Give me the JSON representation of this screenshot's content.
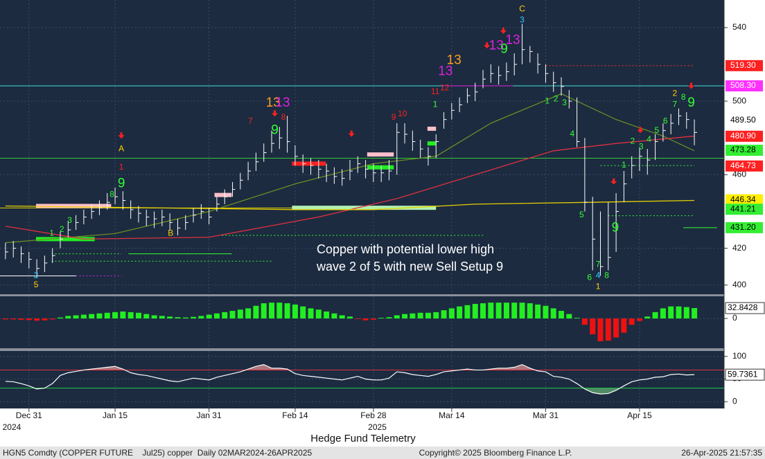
{
  "chart_data": [
    {
      "type": "ohlc",
      "annotation": [
        "Copper with potential lower high",
        "wave 2 of 5 with new Sell Setup 9"
      ],
      "color": "#ffffff",
      "high": [
        423,
        424,
        421,
        418,
        414,
        416,
        420,
        429,
        435,
        438,
        441,
        444,
        446,
        450,
        453,
        451,
        446,
        443,
        441,
        440,
        441,
        439,
        436,
        438,
        442,
        444,
        442,
        448,
        452,
        456,
        461,
        467,
        472,
        477,
        484,
        486,
        492,
        476,
        471,
        469,
        468,
        466,
        464,
        463,
        468,
        470,
        468,
        466,
        465,
        468,
        488,
        488,
        484,
        479,
        475,
        482,
        494,
        499,
        502,
        507,
        510,
        517,
        520,
        519,
        521,
        526,
        542,
        530,
        526,
        520,
        516,
        513,
        506,
        502,
        480,
        448,
        440,
        445,
        450,
        462,
        470,
        475,
        474,
        482,
        488,
        493,
        496,
        494,
        490
      ],
      "low": [
        414,
        415,
        412,
        409,
        404,
        407,
        412,
        420,
        426,
        430,
        433,
        436,
        438,
        441,
        444,
        441,
        436,
        434,
        432,
        431,
        432,
        430,
        427,
        430,
        434,
        436,
        433,
        440,
        444,
        448,
        452,
        457,
        462,
        467,
        472,
        474,
        472,
        465,
        461,
        460,
        458,
        456,
        455,
        454,
        457,
        461,
        458,
        456,
        456,
        457,
        460,
        477,
        473,
        469,
        465,
        469,
        485,
        490,
        494,
        499,
        500,
        507,
        510,
        509,
        511,
        514,
        520,
        521,
        515,
        510,
        505,
        503,
        496,
        475,
        440,
        408,
        405,
        408,
        418,
        445,
        458,
        462,
        460,
        468,
        478,
        482,
        487,
        485,
        476
      ],
      "close": [
        418,
        420,
        417,
        414,
        409,
        412,
        416,
        425,
        430,
        434,
        437,
        440,
        442,
        445,
        448,
        446,
        441,
        439,
        437,
        436,
        437,
        434,
        431,
        434,
        438,
        440,
        437,
        444,
        448,
        452,
        457,
        462,
        467,
        472,
        477,
        480,
        478,
        470,
        466,
        465,
        463,
        462,
        459,
        458,
        462,
        466,
        463,
        461,
        461,
        462,
        483,
        482,
        478,
        474,
        470,
        478,
        490,
        495,
        498,
        503,
        505,
        512,
        515,
        514,
        516,
        520,
        528,
        527,
        520,
        515,
        510,
        508,
        500,
        478,
        445,
        425,
        410,
        415,
        440,
        455,
        465,
        470,
        468,
        478,
        484,
        488,
        492,
        490,
        483
      ],
      "xlim": [
        -0.7,
        91.8
      ],
      "ylim": [
        395,
        555
      ],
      "yticks": [
        400,
        420,
        460,
        500,
        540
      ],
      "xticks": [
        {
          "value": 3,
          "label": "Dec 31"
        },
        {
          "value": 14,
          "label": "Jan 15"
        },
        {
          "value": 26,
          "label": "Jan 31"
        },
        {
          "value": 37,
          "label": "Feb 14"
        },
        {
          "value": 47,
          "label": "Feb 28"
        },
        {
          "value": 57,
          "label": "Mar 14"
        },
        {
          "value": 69,
          "label": "Mar 31"
        },
        {
          "value": 81,
          "label": "Apr 15"
        }
      ],
      "year_labels": [
        {
          "value": 0.8,
          "label": "2024"
        },
        {
          "value": 47.5,
          "label": "2025"
        }
      ],
      "grid": true,
      "series": [
        {
          "color": "#6b8e23",
          "x": [
            0,
            14,
            26,
            37,
            47,
            55,
            62,
            71,
            78,
            84,
            88
          ],
          "values": [
            423,
            428,
            440,
            455,
            466,
            470,
            488,
            504,
            490,
            481,
            473
          ]
        },
        {
          "color": "#e03040",
          "x": [
            0,
            10,
            26,
            40,
            50,
            60,
            70,
            78,
            88
          ],
          "values": [
            432,
            425,
            426,
            437,
            447,
            460,
            473,
            477,
            481
          ]
        },
        {
          "color": "#e8d000",
          "x": [
            0,
            37,
            47,
            60,
            75,
            88
          ],
          "values": [
            443,
            441,
            441,
            444,
            445,
            446
          ]
        }
      ],
      "levels": [
        {
          "value": 508.3,
          "color": "#40e0e0",
          "x": [
            -0.7,
            91.8
          ],
          "style": "solid"
        },
        {
          "value": 469,
          "color": "#33cc33",
          "x": [
            -0.7,
            91.8
          ],
          "style": "solid"
        },
        {
          "value": 441.9,
          "color": "#e0d000",
          "x": [
            -0.7,
            55
          ],
          "style": "solid"
        },
        {
          "value": 519.3,
          "color": "#ff3030",
          "x": [
            69,
            88
          ],
          "style": "dotted"
        },
        {
          "value": 465,
          "color": "#33ff33",
          "x": [
            76,
            88
          ],
          "style": "dotted"
        },
        {
          "value": 437.7,
          "color": "#33ff33",
          "x": [
            77,
            88
          ],
          "style": "dotted"
        },
        {
          "value": 427,
          "color": "#33ff33",
          "x": [
            27.2,
            61.2
          ],
          "style": "dotted"
        },
        {
          "value": 417,
          "color": "#33ff33",
          "x": [
            5.9,
            14.8
          ],
          "style": "dotted"
        },
        {
          "value": 413,
          "color": "#33ff33",
          "x": [
            5.9,
            34.2
          ],
          "style": "dotted"
        },
        {
          "value": 417,
          "color": "#33ff33",
          "x": [
            15.7,
            28.9
          ],
          "style": "solid"
        },
        {
          "value": 405,
          "color": "#e020e0",
          "x": [
            9,
            14.8
          ],
          "style": "dotted"
        },
        {
          "value": 405,
          "color": "#ffffff",
          "x": [
            -0.7,
            9
          ],
          "style": "solid"
        },
        {
          "value": 431.2,
          "color": "#33ff33",
          "x": [
            86.6,
            90.9
          ],
          "style": "solid"
        },
        {
          "value": 508.3,
          "color": "#e020e0",
          "x": [
            55.9,
            64.8
          ],
          "style": "solid"
        },
        {
          "value": 443,
          "color": "#ffc0cb",
          "x": [
            3.9,
            13.5
          ],
          "style": "thick"
        },
        {
          "value": 425,
          "color": "#22ee22",
          "x": [
            3.9,
            11.4
          ],
          "style": "thick"
        },
        {
          "value": 449,
          "color": "#ffc0cb",
          "x": [
            26.7,
            28.9
          ],
          "style": "thick"
        },
        {
          "value": 466,
          "color": "#ff2020",
          "x": [
            36.6,
            40.9
          ],
          "style": "thick"
        },
        {
          "value": 471,
          "color": "#ffc0cb",
          "x": [
            46.2,
            49.6
          ],
          "style": "thick"
        },
        {
          "value": 464,
          "color": "#22ee22",
          "x": [
            46.2,
            49.6
          ],
          "style": "thick"
        },
        {
          "value": 442,
          "color": "#b0f0b0",
          "x": [
            36.6,
            55
          ],
          "style": "thick"
        },
        {
          "value": 485,
          "color": "#ffc0cb",
          "x": [
            53.9,
            55
          ],
          "style": "thick"
        },
        {
          "value": 477,
          "color": "#22ee22",
          "x": [
            53.9,
            55
          ],
          "style": "thick"
        }
      ],
      "price_labels": [
        {
          "value": 519.3,
          "label": "519.30",
          "color": "#ff2020"
        },
        {
          "value": 508.3,
          "label": "508.30",
          "color": "#ff30ff"
        },
        {
          "value": 489.5,
          "label": "489.50",
          "color": "#ffffff"
        },
        {
          "value": 480.9,
          "label": "480.90",
          "color": "#ff2020"
        },
        {
          "value": 473.28,
          "label": "473.28",
          "color": "#33ee33"
        },
        {
          "value": 464.73,
          "label": "464.73",
          "color": "#ff2020"
        },
        {
          "value": 446.34,
          "label": "446.34",
          "color": "#ffee00"
        },
        {
          "value": 441.21,
          "label": "441.21",
          "color": "#33ee33"
        },
        {
          "value": 431.2,
          "label": "431.20",
          "color": "#33ee33"
        }
      ],
      "markers": [
        {
          "text": "A",
          "x": 14.8,
          "y": 474,
          "color": "#ffd000"
        },
        {
          "text": "1",
          "x": 14.8,
          "y": 464,
          "color": "#ff2020"
        },
        {
          "text": "9",
          "x": 14.8,
          "y": 455,
          "color": "#33ff33"
        },
        {
          "text": "8",
          "x": 13.6,
          "y": 449,
          "color": "#33ff33"
        },
        {
          "text": "B",
          "x": 21.1,
          "y": 428,
          "color": "#ffd000"
        },
        {
          "text": "1",
          "x": 5.9,
          "y": 428,
          "color": "#33ff33"
        },
        {
          "text": "2",
          "x": 7.2,
          "y": 430,
          "color": "#33ff33"
        },
        {
          "text": "3",
          "x": 8.2,
          "y": 435,
          "color": "#33ff33"
        },
        {
          "text": "2",
          "x": 3.9,
          "y": 405,
          "color": "#33ccff"
        },
        {
          "text": "5",
          "x": 3.9,
          "y": 400,
          "color": "#ffd000"
        },
        {
          "text": "7",
          "x": 31.3,
          "y": 489,
          "color": "#ff2020"
        },
        {
          "text": "13",
          "x": 34.2,
          "y": 499,
          "color": "#ff9f1c"
        },
        {
          "text": "13",
          "x": 35.4,
          "y": 499,
          "color": "#e020e0"
        },
        {
          "text": "9",
          "x": 34.4,
          "y": 484,
          "color": "#33ff33"
        },
        {
          "text": "8",
          "x": 35.5,
          "y": 491,
          "color": "#ff2020"
        },
        {
          "text": "9",
          "x": 49.6,
          "y": 491,
          "color": "#ff2020"
        },
        {
          "text": "10",
          "x": 50.7,
          "y": 493,
          "color": "#ff2020"
        },
        {
          "text": "11",
          "x": 54.9,
          "y": 505,
          "color": "#ff2020"
        },
        {
          "text": "12",
          "x": 56.1,
          "y": 507,
          "color": "#ff2020"
        },
        {
          "text": "1",
          "x": 54.9,
          "y": 498,
          "color": "#33ff33"
        },
        {
          "text": "13",
          "x": 56.2,
          "y": 516,
          "color": "#e020e0"
        },
        {
          "text": "13",
          "x": 57.3,
          "y": 522,
          "color": "#ff9f1c"
        },
        {
          "text": "13",
          "x": 62.7,
          "y": 530,
          "color": "#e020e0"
        },
        {
          "text": "9",
          "x": 63.7,
          "y": 528,
          "color": "#33ff33"
        },
        {
          "text": "13",
          "x": 64.8,
          "y": 533,
          "color": "#e020e0"
        },
        {
          "text": "C",
          "x": 66,
          "y": 550,
          "color": "#ffd000"
        },
        {
          "text": "3",
          "x": 66,
          "y": 544,
          "color": "#33ccff"
        },
        {
          "text": "1",
          "x": 69.2,
          "y": 500,
          "color": "#33ff33"
        },
        {
          "text": "2",
          "x": 70.3,
          "y": 501,
          "color": "#33ff33"
        },
        {
          "text": "3",
          "x": 71.4,
          "y": 499,
          "color": "#33ff33"
        },
        {
          "text": "4",
          "x": 72.4,
          "y": 482,
          "color": "#33ff33"
        },
        {
          "text": "5",
          "x": 73.6,
          "y": 438,
          "color": "#33ff33"
        },
        {
          "text": "6",
          "x": 74.6,
          "y": 404,
          "color": "#33ff33"
        },
        {
          "text": "7",
          "x": 75.7,
          "y": 411,
          "color": "#33ff33"
        },
        {
          "text": "4",
          "x": 75.7,
          "y": 405,
          "color": "#33ccff"
        },
        {
          "text": "1",
          "x": 75.7,
          "y": 399,
          "color": "#ffd000"
        },
        {
          "text": "8",
          "x": 76.8,
          "y": 405,
          "color": "#33ff33"
        },
        {
          "text": "9",
          "x": 77.9,
          "y": 431,
          "color": "#33ff33"
        },
        {
          "text": "1",
          "x": 79.0,
          "y": 465,
          "color": "#33ff33"
        },
        {
          "text": "2",
          "x": 80.1,
          "y": 478,
          "color": "#33ff33"
        },
        {
          "text": "3",
          "x": 81.2,
          "y": 475,
          "color": "#33ff33"
        },
        {
          "text": "4",
          "x": 82.2,
          "y": 479,
          "color": "#33ff33"
        },
        {
          "text": "5",
          "x": 83.2,
          "y": 484,
          "color": "#33ff33"
        },
        {
          "text": "6",
          "x": 84.3,
          "y": 489,
          "color": "#33ff33"
        },
        {
          "text": "7",
          "x": 85.5,
          "y": 498,
          "color": "#33ff33"
        },
        {
          "text": "2",
          "x": 85.5,
          "y": 504,
          "color": "#ffd000"
        },
        {
          "text": "8",
          "x": 86.6,
          "y": 502,
          "color": "#33ff33"
        },
        {
          "text": "9",
          "x": 87.6,
          "y": 499,
          "color": "#33ff33"
        }
      ],
      "arrows": [
        {
          "x": 14.8,
          "y": 480
        },
        {
          "x": 34.4,
          "y": 492
        },
        {
          "x": 44.2,
          "y": 481
        },
        {
          "x": 61.5,
          "y": 529
        },
        {
          "x": 63.6,
          "y": 537
        },
        {
          "x": 77.7,
          "y": 455
        },
        {
          "x": 81.1,
          "y": 483
        },
        {
          "x": 87.6,
          "y": 507
        }
      ]
    },
    {
      "type": "bar",
      "color": "#22ee22",
      "negative_color": "#ee1111",
      "values": [
        -3,
        -3,
        -4,
        -5,
        -7,
        -6,
        -3,
        3,
        8,
        10,
        12,
        14,
        16,
        18,
        20,
        22,
        20,
        18,
        14,
        10,
        8,
        6,
        4,
        3,
        5,
        8,
        12,
        16,
        20,
        24,
        28,
        32,
        40,
        48,
        50,
        50,
        48,
        44,
        38,
        32,
        28,
        22,
        16,
        10,
        6,
        -2,
        -6,
        -4,
        2,
        4,
        10,
        14,
        16,
        18,
        18,
        20,
        26,
        32,
        38,
        42,
        46,
        48,
        50,
        50,
        50,
        50,
        50,
        48,
        44,
        40,
        32,
        24,
        14,
        2,
        -20,
        -50,
        -72,
        -70,
        -60,
        -45,
        -20,
        -8,
        6,
        20,
        32,
        38,
        38,
        36,
        32.8428
      ],
      "xlim": [
        -0.7,
        91.8
      ],
      "ylim": [
        -94,
        70
      ],
      "yticks": [
        0
      ]
    },
    {
      "type": "line",
      "color": "#ffffff",
      "values": [
        45,
        44,
        40,
        35,
        28,
        30,
        40,
        58,
        64,
        67,
        70,
        72,
        74,
        76,
        78,
        72,
        64,
        60,
        58,
        54,
        50,
        46,
        44,
        48,
        52,
        50,
        48,
        54,
        58,
        62,
        66,
        72,
        78,
        82,
        74,
        74,
        72,
        62,
        58,
        56,
        54,
        52,
        50,
        48,
        52,
        56,
        50,
        48,
        48,
        52,
        66,
        64,
        60,
        58,
        56,
        60,
        66,
        68,
        70,
        72,
        70,
        70,
        72,
        74,
        74,
        76,
        82,
        74,
        68,
        66,
        56,
        54,
        50,
        40,
        28,
        20,
        17,
        18,
        25,
        35,
        44,
        48,
        50,
        54,
        55,
        60,
        61,
        59,
        59.7361
      ],
      "xlim": [
        -0.7,
        91.8
      ],
      "ylim": [
        -15,
        112
      ],
      "yticks": [
        0,
        50,
        100
      ],
      "levels": [
        {
          "value": 70,
          "color": "#e03040"
        },
        {
          "value": 30,
          "color": "#22cc44"
        }
      ]
    }
  ],
  "title": "Hedge Fund Telemetry",
  "footer": {
    "left": "HGN5 Comdty (COPPER FUTURE    Jul25) copper  Daily 02MAR2024-26APR2025",
    "center": "Copyright© 2025 Bloomberg Finance L.P.",
    "right": "26-Apr-2025 21:57:35"
  }
}
